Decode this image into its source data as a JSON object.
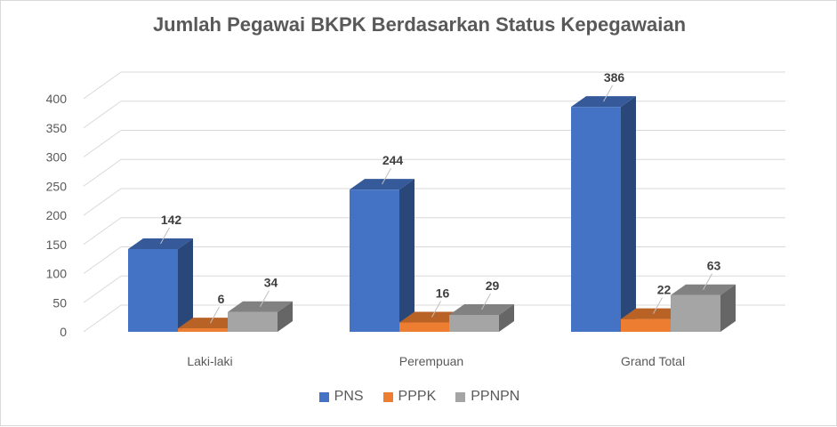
{
  "chart_data": {
    "type": "bar",
    "title": "Jumlah Pegawai BKPK Berdasarkan Status Kepegawaian",
    "categories": [
      "Laki-laki",
      "Perempuan",
      "Grand Total"
    ],
    "series": [
      {
        "name": "PNS",
        "values": [
          142,
          244,
          386
        ],
        "color": "#4472c4"
      },
      {
        "name": "PPPK",
        "values": [
          6,
          16,
          22
        ],
        "color": "#ed7d31"
      },
      {
        "name": "PPNPN",
        "values": [
          34,
          29,
          63
        ],
        "color": "#a5a5a5"
      }
    ],
    "ylim": [
      0,
      400
    ],
    "yticks": [
      0,
      50,
      100,
      150,
      200,
      250,
      300,
      350,
      400
    ],
    "grid": true,
    "legend_position": "bottom",
    "three_d": true
  }
}
